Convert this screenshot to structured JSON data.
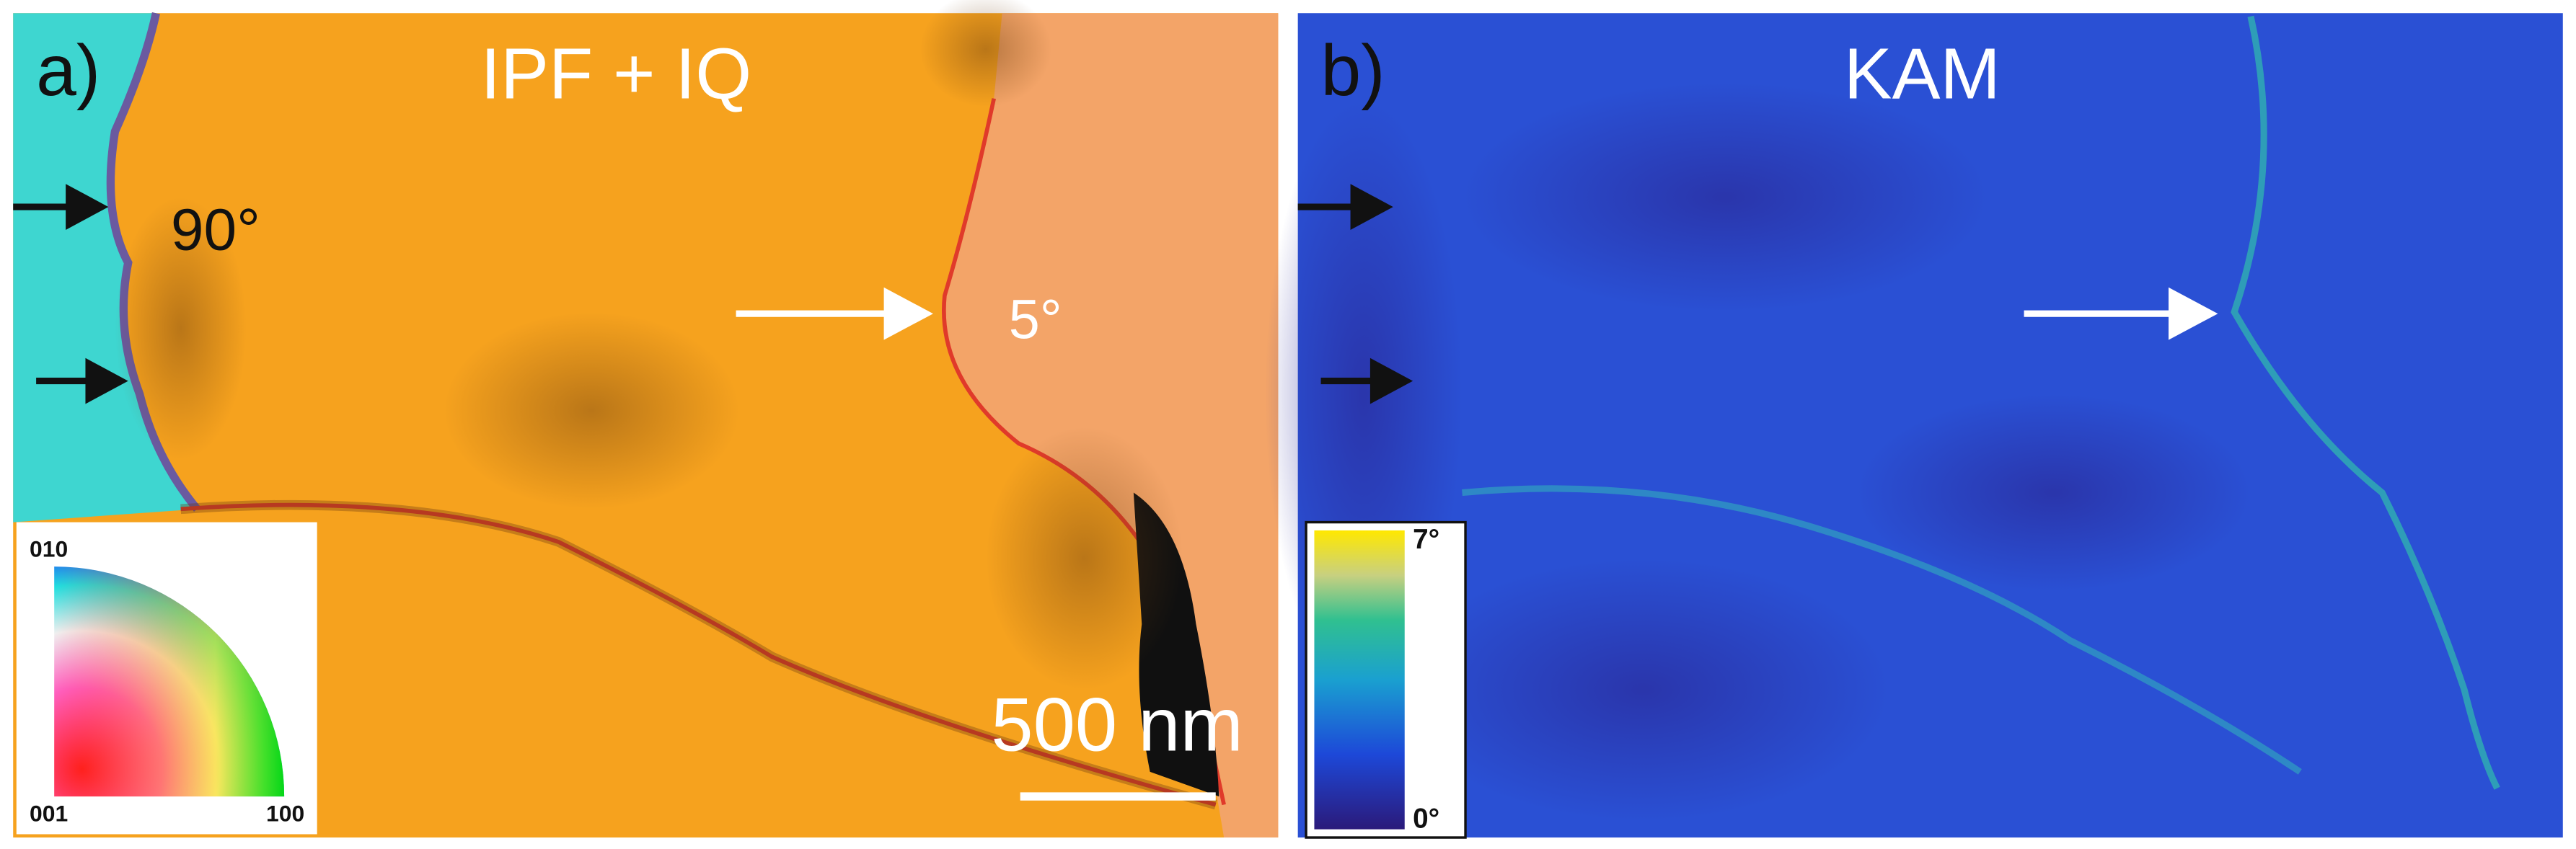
{
  "panels": [
    {
      "label": "a)",
      "title": "IPF + IQ",
      "annotations": [
        "90°",
        "5°"
      ],
      "scale_bar": "500 nm",
      "legend": {
        "labels": [
          "010",
          "001",
          "100"
        ]
      }
    },
    {
      "label": "b)",
      "title": "KAM",
      "colorbar": {
        "labels": [
          "7°",
          "0°"
        ]
      }
    }
  ]
}
